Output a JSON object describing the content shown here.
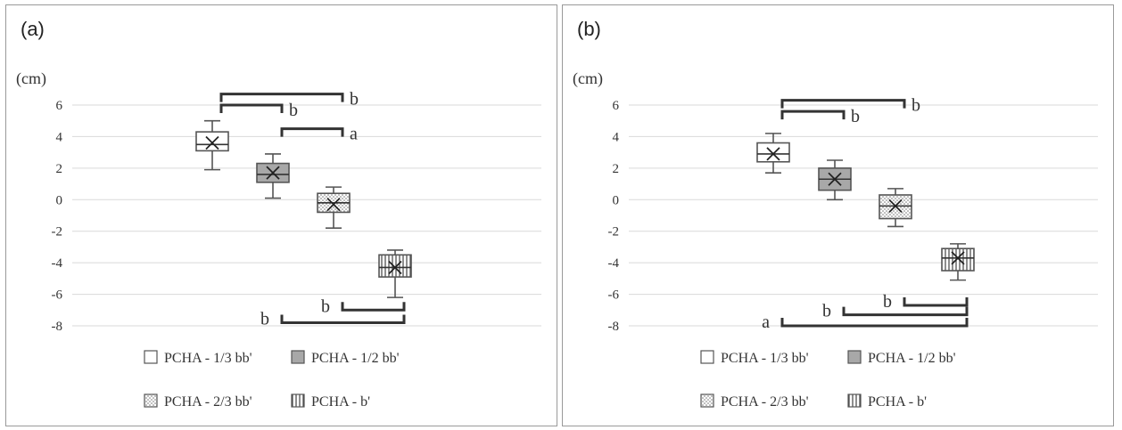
{
  "chart_data": [
    {
      "type": "box",
      "panel_label": "(a)",
      "ylabel": "(cm)",
      "ylim": [
        -8,
        6
      ],
      "yticks": [
        "6",
        "4",
        "2",
        "0",
        "-2",
        "-4",
        "-6",
        "-8"
      ],
      "grid": true,
      "legend_position": "bottom",
      "series": [
        {
          "name": "PCHA - 1/3 bb'",
          "fill": "white",
          "min": 1.9,
          "q1": 3.1,
          "median": 3.5,
          "q3": 4.3,
          "max": 5.0,
          "mean": 3.6
        },
        {
          "name": "PCHA - 1/2 bb'",
          "fill": "gray",
          "min": 0.1,
          "q1": 1.1,
          "median": 1.6,
          "q3": 2.3,
          "max": 2.9,
          "mean": 1.7
        },
        {
          "name": "PCHA - 2/3 bb'",
          "fill": "dots",
          "min": -1.8,
          "q1": -0.8,
          "median": -0.2,
          "q3": 0.4,
          "max": 0.8,
          "mean": -0.3
        },
        {
          "name": "PCHA - b'",
          "fill": "vlines",
          "min": -6.2,
          "q1": -4.9,
          "median": -4.3,
          "q3": -3.5,
          "max": -3.2,
          "mean": -4.3
        }
      ],
      "brackets": [
        {
          "from": 0,
          "to": 2,
          "level": 6.7,
          "dir": "down",
          "label": "b"
        },
        {
          "from": 0,
          "to": 1,
          "level": 6.0,
          "dir": "down",
          "label": "b"
        },
        {
          "from": 1,
          "to": 2,
          "level": 4.5,
          "dir": "down",
          "label": "a"
        },
        {
          "from": 2,
          "to": 3,
          "level": -7.0,
          "dir": "up",
          "label": "b"
        },
        {
          "from": 1,
          "to": 3,
          "level": -7.8,
          "dir": "up",
          "label": "b"
        }
      ]
    },
    {
      "type": "box",
      "panel_label": "(b)",
      "ylabel": "(cm)",
      "ylim": [
        -8,
        6
      ],
      "yticks": [
        "6",
        "4",
        "2",
        "0",
        "-2",
        "-4",
        "-6",
        "-8"
      ],
      "grid": true,
      "legend_position": "bottom",
      "series": [
        {
          "name": "PCHA - 1/3 bb'",
          "fill": "white",
          "min": 1.7,
          "q1": 2.4,
          "median": 2.9,
          "q3": 3.6,
          "max": 4.2,
          "mean": 2.9
        },
        {
          "name": "PCHA - 1/2 bb'",
          "fill": "gray",
          "min": 0.0,
          "q1": 0.6,
          "median": 1.3,
          "q3": 2.0,
          "max": 2.5,
          "mean": 1.3
        },
        {
          "name": "PCHA - 2/3 bb'",
          "fill": "dots",
          "min": -1.7,
          "q1": -1.2,
          "median": -0.4,
          "q3": 0.3,
          "max": 0.7,
          "mean": -0.4
        },
        {
          "name": "PCHA - b'",
          "fill": "vlines",
          "min": -5.1,
          "q1": -4.5,
          "median": -3.7,
          "q3": -3.1,
          "max": -2.8,
          "mean": -3.7
        }
      ],
      "brackets": [
        {
          "from": 0,
          "to": 2,
          "level": 6.3,
          "dir": "down",
          "label": "b"
        },
        {
          "from": 0,
          "to": 1,
          "level": 5.6,
          "dir": "down",
          "label": "b"
        },
        {
          "from": 2,
          "to": 3,
          "level": -6.7,
          "dir": "up",
          "label": "b"
        },
        {
          "from": 1,
          "to": 3,
          "level": -7.3,
          "dir": "up",
          "label": "b"
        },
        {
          "from": 0,
          "to": 3,
          "level": -8.0,
          "dir": "up",
          "label": "a"
        }
      ]
    }
  ]
}
